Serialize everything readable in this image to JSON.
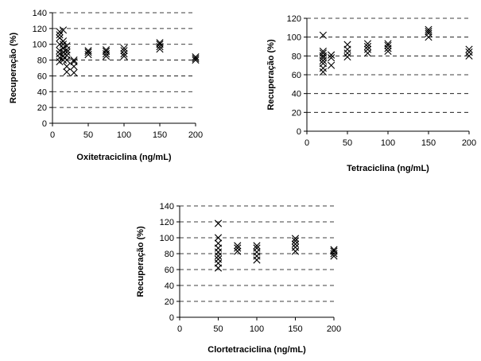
{
  "chart_data": [
    {
      "type": "scatter",
      "xlabel": "Oxitetraciclina (ng/mL)",
      "ylabel": "Recuperação (%)",
      "xlim": [
        0,
        200
      ],
      "ylim": [
        0,
        140
      ],
      "xticks": [
        "0",
        "50",
        "100",
        "150",
        "200"
      ],
      "yticks": [
        "0",
        "20",
        "40",
        "60",
        "80",
        "100",
        "120",
        "140"
      ],
      "grid": "horizontal dashed",
      "marker": "x",
      "points": [
        [
          10,
          78
        ],
        [
          10,
          83
        ],
        [
          10,
          88
        ],
        [
          10,
          92
        ],
        [
          10,
          100
        ],
        [
          10,
          108
        ],
        [
          10,
          112
        ],
        [
          10,
          116
        ],
        [
          15,
          80
        ],
        [
          15,
          85
        ],
        [
          15,
          90
        ],
        [
          15,
          95
        ],
        [
          15,
          100
        ],
        [
          15,
          104
        ],
        [
          15,
          118
        ],
        [
          20,
          65
        ],
        [
          20,
          72
        ],
        [
          20,
          80
        ],
        [
          20,
          86
        ],
        [
          20,
          90
        ],
        [
          20,
          93
        ],
        [
          20,
          98
        ],
        [
          30,
          64
        ],
        [
          30,
          72
        ],
        [
          30,
          78
        ],
        [
          30,
          80
        ],
        [
          50,
          87
        ],
        [
          50,
          90
        ],
        [
          50,
          92
        ],
        [
          75,
          85
        ],
        [
          75,
          88
        ],
        [
          75,
          91
        ],
        [
          75,
          93
        ],
        [
          100,
          85
        ],
        [
          100,
          88
        ],
        [
          100,
          92
        ],
        [
          100,
          95
        ],
        [
          150,
          94
        ],
        [
          150,
          97
        ],
        [
          150,
          100
        ],
        [
          150,
          102
        ],
        [
          200,
          80
        ],
        [
          200,
          82
        ],
        [
          200,
          84
        ]
      ]
    },
    {
      "type": "scatter",
      "xlabel": "Tetraciclina (ng/mL)",
      "ylabel": "Recuperação (%)",
      "xlim": [
        0,
        200
      ],
      "ylim": [
        0,
        120
      ],
      "xticks": [
        "0",
        "50",
        "100",
        "150",
        "200"
      ],
      "yticks": [
        "0",
        "20",
        "40",
        "60",
        "80",
        "100",
        "120"
      ],
      "grid": "horizontal dashed",
      "marker": "x",
      "points": [
        [
          20,
          63
        ],
        [
          20,
          67
        ],
        [
          20,
          72
        ],
        [
          20,
          75
        ],
        [
          20,
          78
        ],
        [
          20,
          80
        ],
        [
          20,
          83
        ],
        [
          20,
          85
        ],
        [
          20,
          102
        ],
        [
          30,
          70
        ],
        [
          30,
          78
        ],
        [
          30,
          81
        ],
        [
          50,
          79
        ],
        [
          50,
          83
        ],
        [
          50,
          87
        ],
        [
          50,
          92
        ],
        [
          75,
          83
        ],
        [
          75,
          87
        ],
        [
          75,
          90
        ],
        [
          75,
          93
        ],
        [
          100,
          85
        ],
        [
          100,
          88
        ],
        [
          100,
          91
        ],
        [
          100,
          93
        ],
        [
          150,
          100
        ],
        [
          150,
          104
        ],
        [
          150,
          106
        ],
        [
          150,
          108
        ],
        [
          200,
          80
        ],
        [
          200,
          84
        ],
        [
          200,
          87
        ]
      ]
    },
    {
      "type": "scatter",
      "xlabel": "Clortetraciclina (ng/mL)",
      "ylabel": "Recuperação (%)",
      "xlim": [
        0,
        200
      ],
      "ylim": [
        0,
        140
      ],
      "xticks": [
        "0",
        "50",
        "100",
        "150",
        "200"
      ],
      "yticks": [
        "0",
        "20",
        "40",
        "60",
        "80",
        "100",
        "120",
        "140"
      ],
      "grid": "horizontal dashed",
      "marker": "x",
      "points": [
        [
          50,
          62
        ],
        [
          50,
          68
        ],
        [
          50,
          73
        ],
        [
          50,
          77
        ],
        [
          50,
          82
        ],
        [
          50,
          87
        ],
        [
          50,
          93
        ],
        [
          50,
          100
        ],
        [
          50,
          118
        ],
        [
          75,
          83
        ],
        [
          75,
          87
        ],
        [
          75,
          90
        ],
        [
          100,
          72
        ],
        [
          100,
          77
        ],
        [
          100,
          82
        ],
        [
          100,
          87
        ],
        [
          100,
          90
        ],
        [
          150,
          83
        ],
        [
          150,
          88
        ],
        [
          150,
          92
        ],
        [
          150,
          96
        ],
        [
          150,
          99
        ],
        [
          200,
          77
        ],
        [
          200,
          80
        ],
        [
          200,
          83
        ],
        [
          200,
          85
        ]
      ]
    }
  ]
}
